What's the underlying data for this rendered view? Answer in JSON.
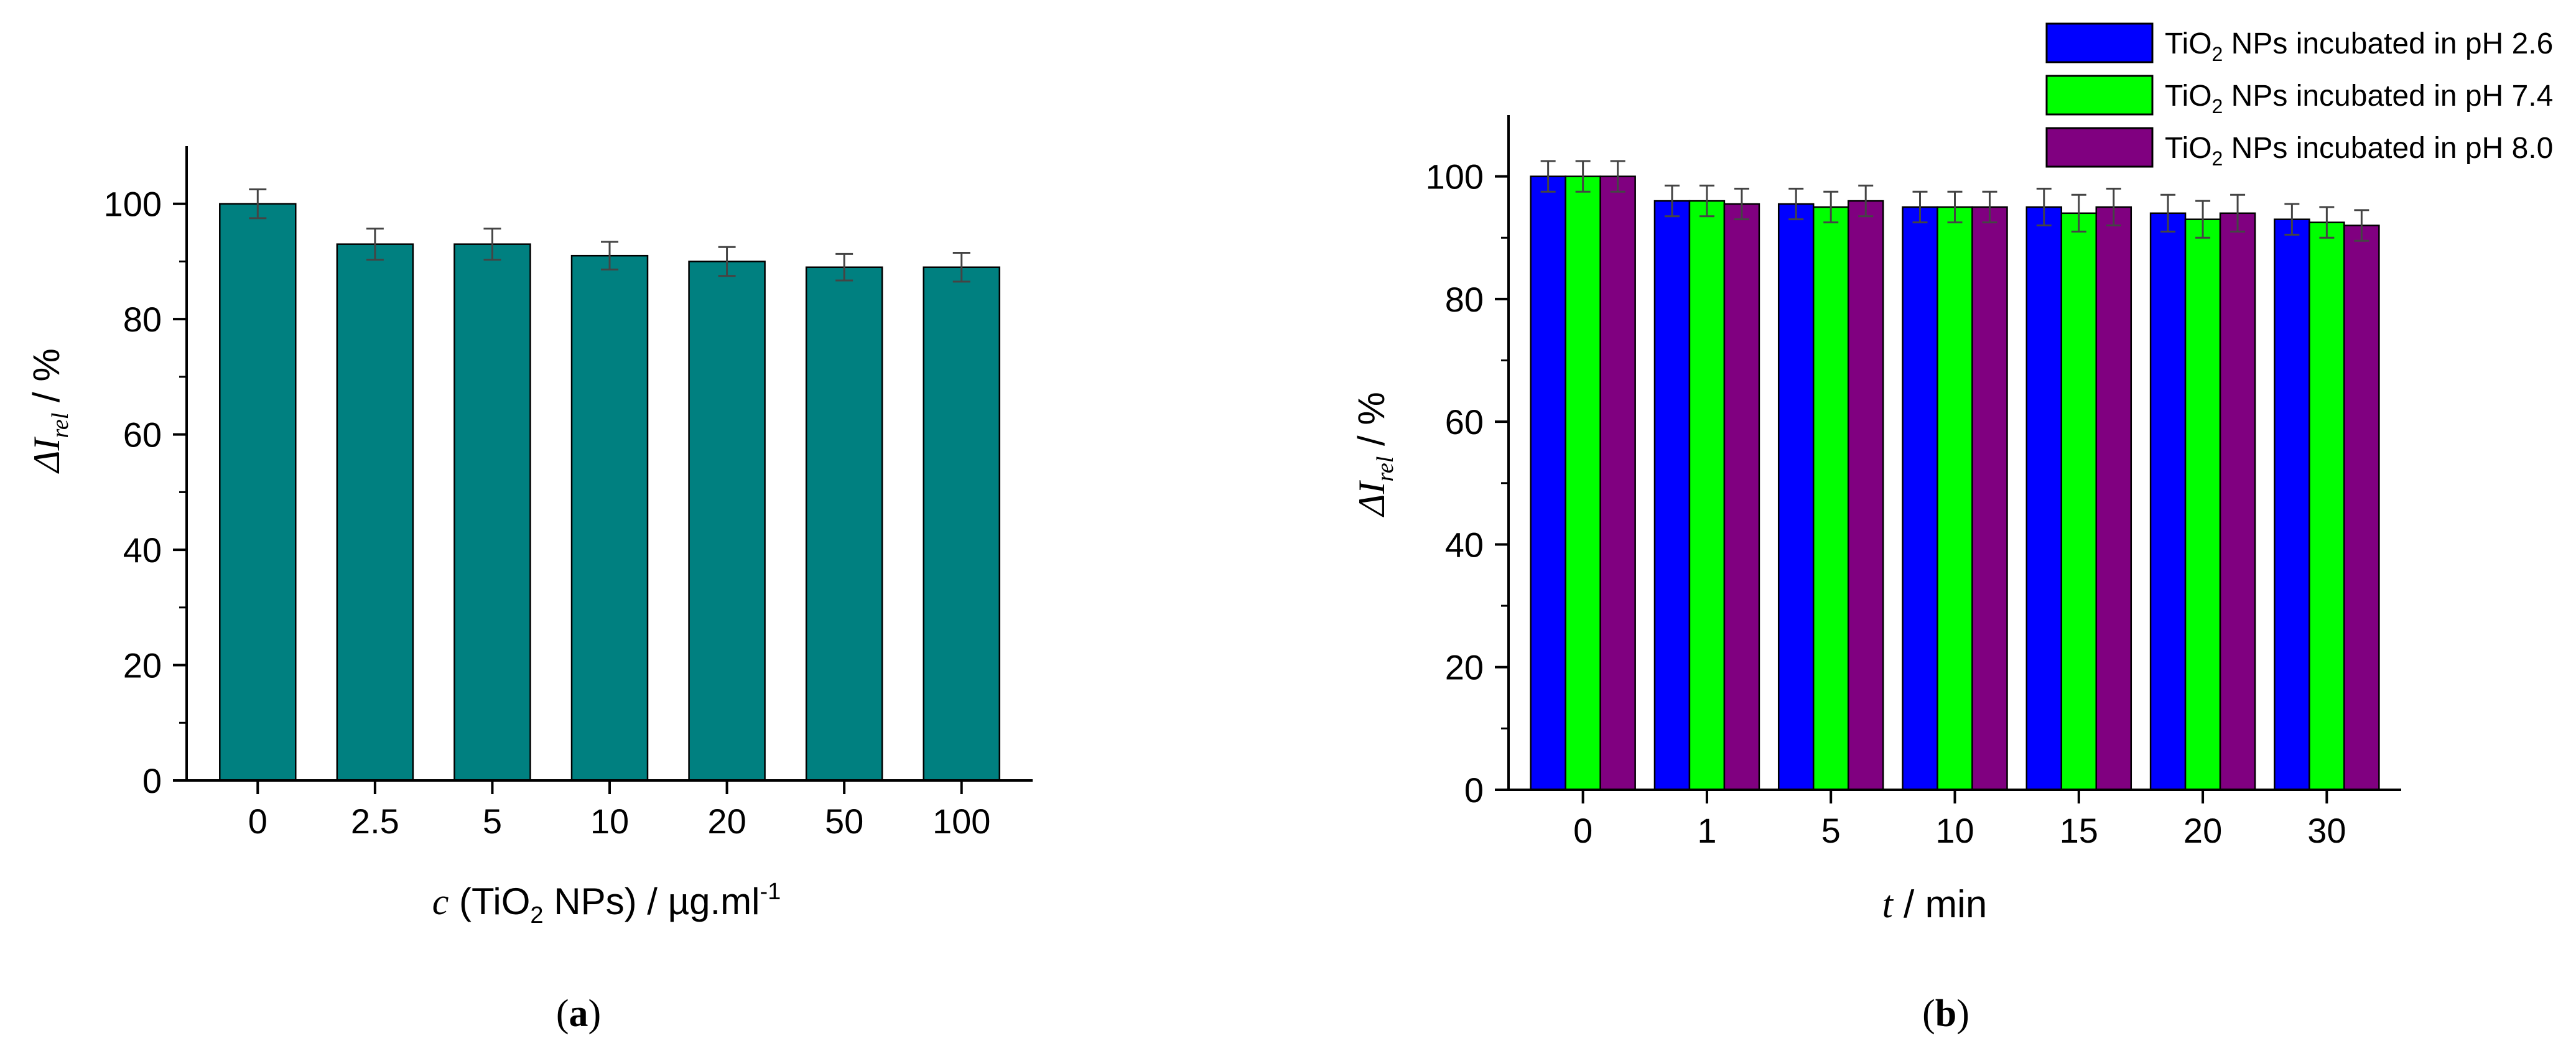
{
  "chart_data": [
    {
      "type": "bar",
      "panel_label": "(a)",
      "categories": [
        "0",
        "2.5",
        "5",
        "10",
        "20",
        "50",
        "100"
      ],
      "values": [
        100,
        93,
        93,
        91,
        90,
        89,
        89
      ],
      "errors": [
        2.5,
        2.7,
        2.7,
        2.4,
        2.5,
        2.3,
        2.5
      ],
      "xlabel": "c (TiO2 NPs) / µg.ml-1",
      "ylabel": "ΔIrel / %",
      "ylim": [
        0,
        110
      ],
      "yticks": [
        0,
        20,
        40,
        60,
        80,
        100
      ],
      "bar_color": "#008080",
      "grid": false
    },
    {
      "type": "bar",
      "panel_label": "(b)",
      "categories": [
        "0",
        "1",
        "5",
        "10",
        "15",
        "20",
        "30"
      ],
      "series": [
        {
          "name": "TiO2 NPs incubated in pH 2.6",
          "color": "#0000FF",
          "values": [
            100,
            96,
            95.5,
            95,
            95,
            94,
            93
          ],
          "errors": [
            2.5,
            2.5,
            2.5,
            2.5,
            3,
            3,
            2.5
          ]
        },
        {
          "name": "TiO2 NPs incubated in pH 7.4",
          "color": "#00FF00",
          "values": [
            100,
            96,
            95,
            95,
            94,
            93,
            92.5
          ],
          "errors": [
            2.5,
            2.5,
            2.5,
            2.5,
            3,
            3,
            2.5
          ]
        },
        {
          "name": "TiO2 NPs incubated in pH 8.0",
          "color": "#800080",
          "values": [
            100,
            95.5,
            96,
            95,
            95,
            94,
            92
          ],
          "errors": [
            2.5,
            2.5,
            2.5,
            2.5,
            3,
            3,
            2.5
          ]
        }
      ],
      "xlabel": "t / min",
      "ylabel": "ΔIrel / %",
      "ylim": [
        0,
        110
      ],
      "yticks": [
        0,
        20,
        40,
        60,
        80,
        100
      ],
      "legend_position": "top-right",
      "grid": false
    }
  ]
}
